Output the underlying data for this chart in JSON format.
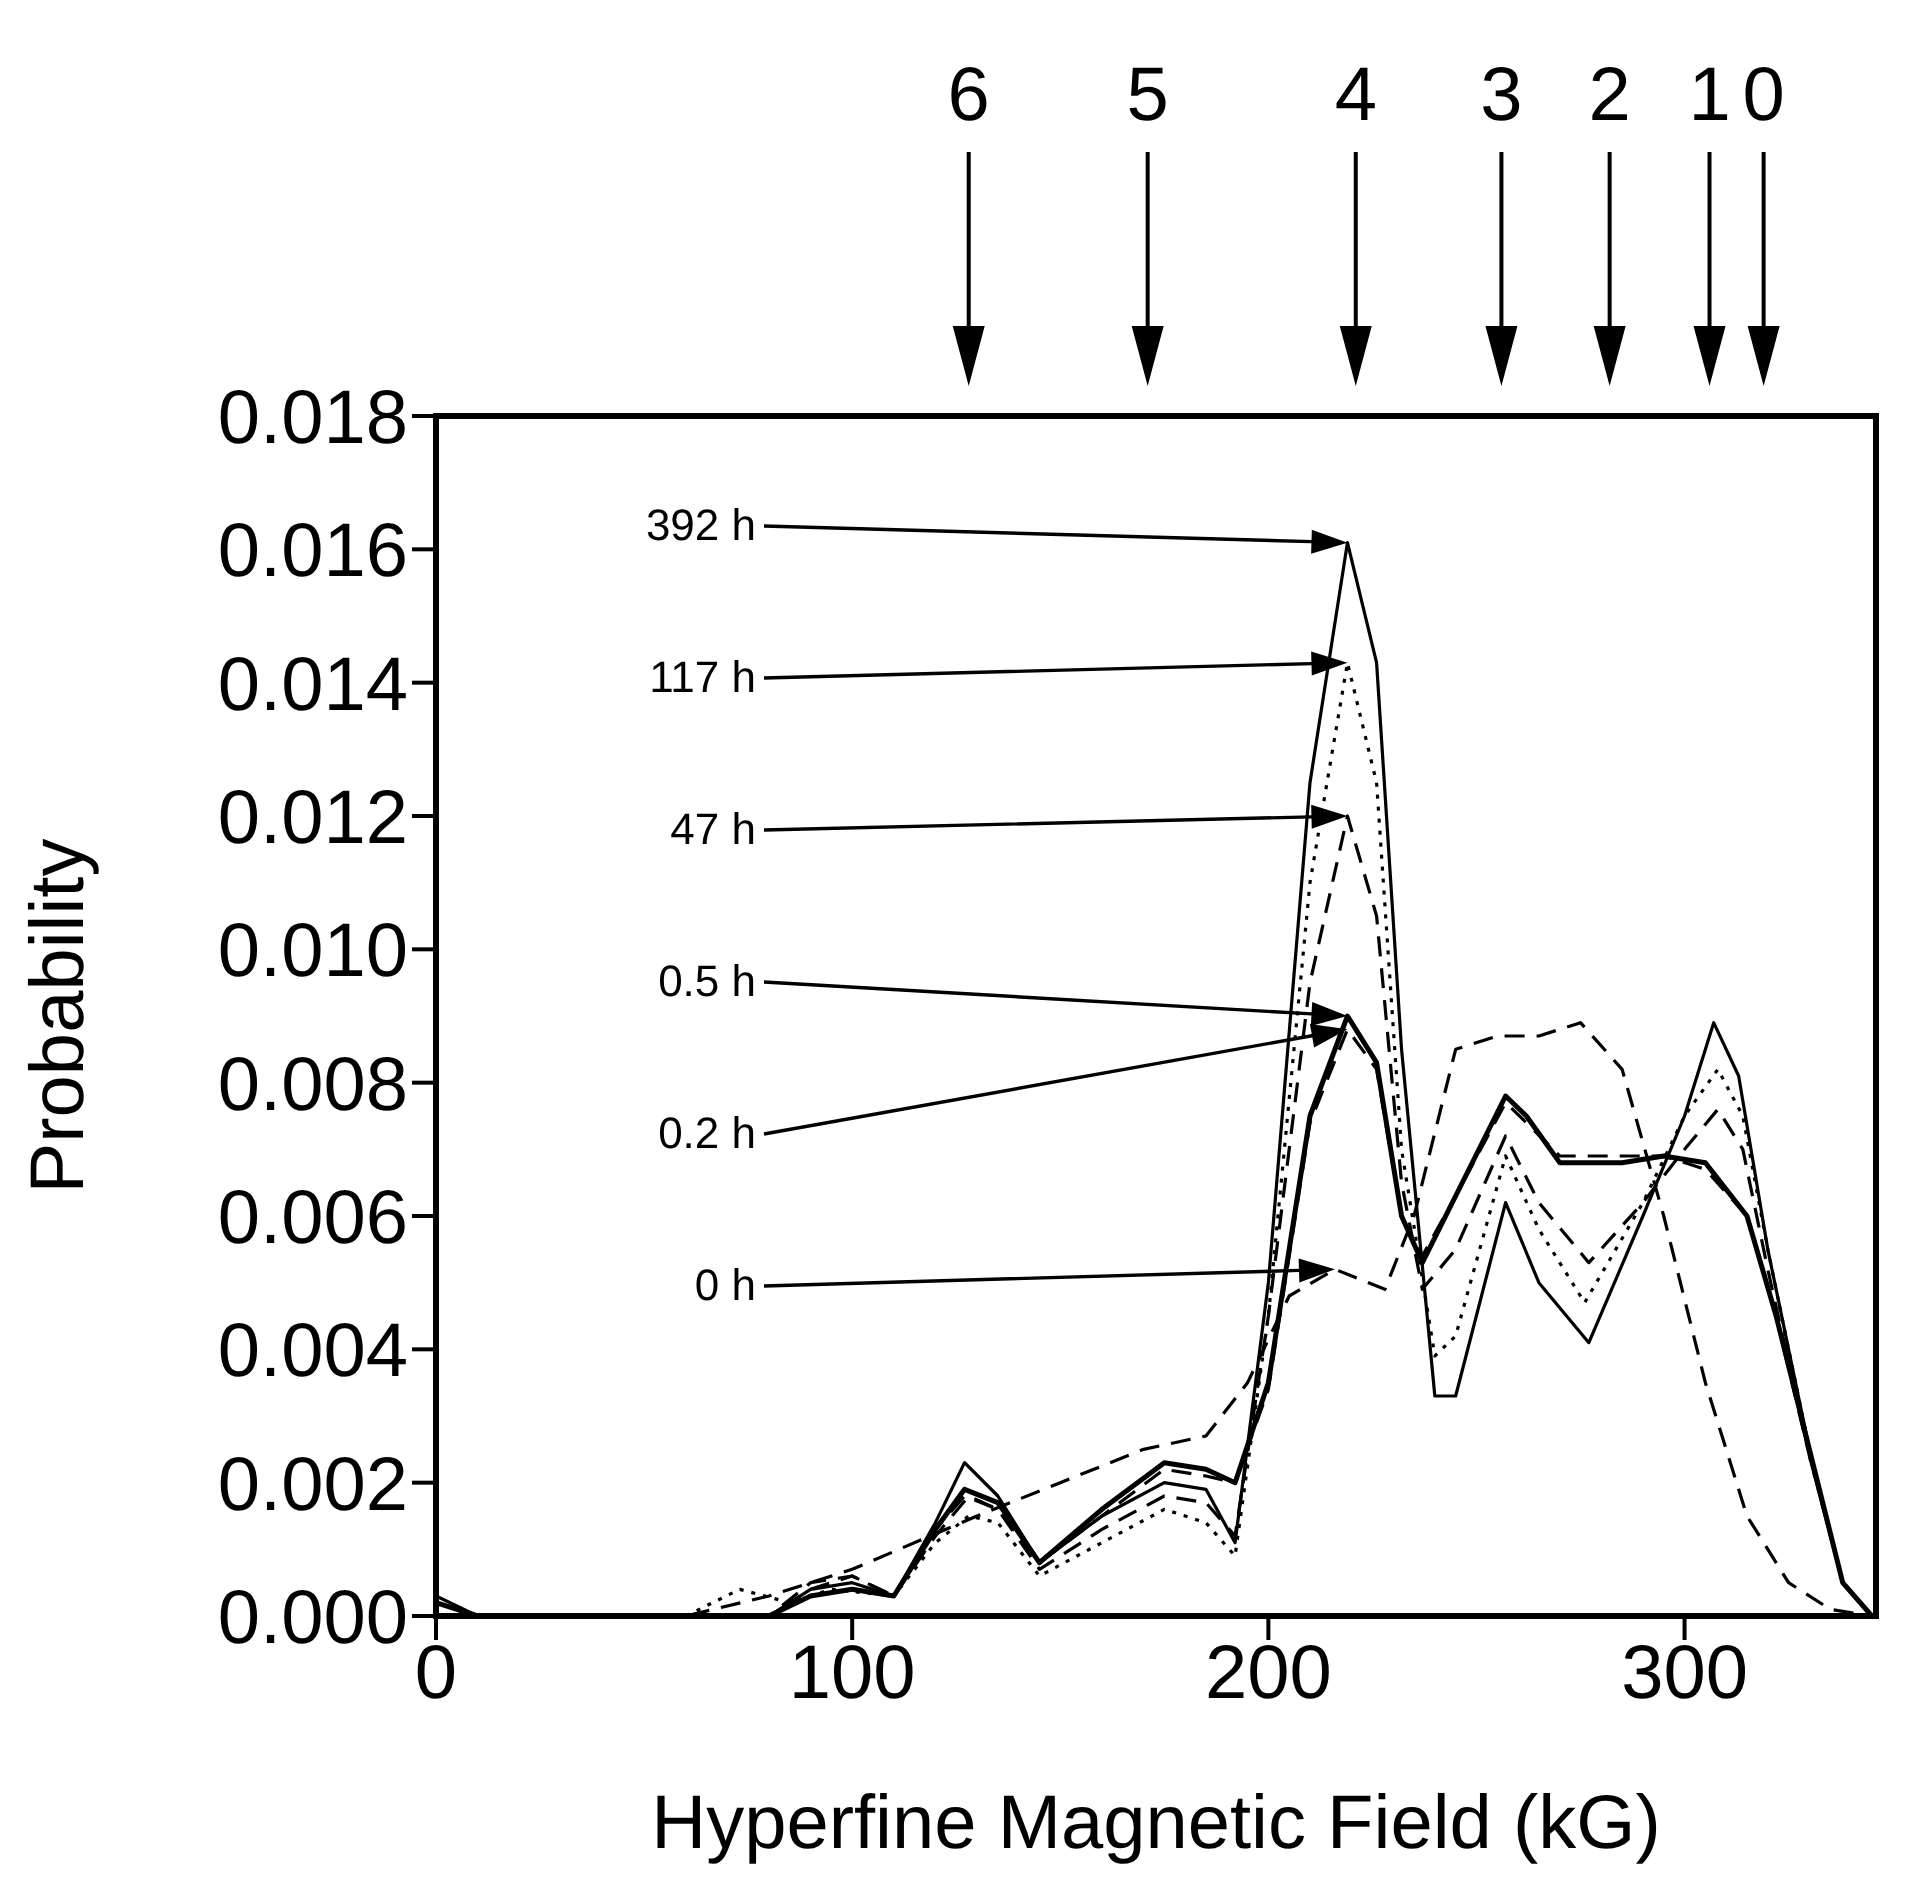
{
  "chart_data": {
    "type": "line",
    "xlabel": "Hyperfine Magnetic Field (kG)",
    "ylabel": "Probability",
    "xlim": [
      0,
      346
    ],
    "xticks": [
      0,
      100,
      200,
      300
    ],
    "ylim": [
      0,
      0.018
    ],
    "yticks": [
      {
        "value": 0,
        "label": "0.000"
      },
      {
        "value": 0.002,
        "label": "0.002"
      },
      {
        "value": 0.004,
        "label": "0.004"
      },
      {
        "value": 0.006,
        "label": "0.006"
      },
      {
        "value": 0.008,
        "label": "0.008"
      },
      {
        "value": 0.01,
        "label": "0.010"
      },
      {
        "value": 0.012,
        "label": "0.012"
      },
      {
        "value": 0.014,
        "label": "0.014"
      },
      {
        "value": 0.016,
        "label": "0.016"
      },
      {
        "value": 0.018,
        "label": "0.018"
      }
    ],
    "grid": false,
    "legend": false,
    "marker": "none",
    "series": [
      {
        "color": "#000000",
        "line_style": "solid",
        "x": [
          0,
          10,
          80,
          90,
          100,
          110,
          120,
          127,
          135,
          145,
          160,
          175,
          185,
          192,
          200,
          210,
          219,
          226,
          232,
          240,
          245,
          257,
          265,
          277,
          290,
          300,
          307,
          313,
          320,
          330,
          338,
          345
        ],
        "values": [
          0.0003,
          0,
          0,
          0.0004,
          0.0005,
          0.0003,
          0.0014,
          0.0023,
          0.0018,
          0.0008,
          0.0015,
          0.002,
          0.0019,
          0.0011,
          0.005,
          0.0125,
          0.0161,
          0.0143,
          0.0085,
          0.0033,
          0.0033,
          0.0062,
          0.005,
          0.0041,
          0.006,
          0.0075,
          0.0089,
          0.0081,
          0.0055,
          0.0025,
          0.0005,
          0
        ]
      },
      {
        "color": "#000000",
        "line_style": "dotted",
        "x": [
          0,
          10,
          60,
          73,
          85,
          95,
          110,
          120,
          128,
          135,
          145,
          160,
          175,
          185,
          192,
          200,
          210,
          219,
          226,
          232,
          240,
          245,
          257,
          265,
          276,
          290,
          300,
          308,
          314,
          320,
          330,
          338,
          345
        ],
        "values": [
          0.0002,
          0,
          0,
          0.0004,
          0.0002,
          0.0004,
          0.0003,
          0.0011,
          0.0015,
          0.0014,
          0.0006,
          0.0011,
          0.0016,
          0.0014,
          0.0009,
          0.0045,
          0.011,
          0.0143,
          0.0125,
          0.007,
          0.0039,
          0.0042,
          0.0069,
          0.0058,
          0.0047,
          0.0062,
          0.0075,
          0.0082,
          0.0075,
          0.0055,
          0.0025,
          0.0005,
          0
        ]
      },
      {
        "color": "#000000",
        "line_style": "dashed",
        "x": [
          0,
          10,
          80,
          90,
          100,
          110,
          120,
          128,
          135,
          145,
          160,
          175,
          185,
          192,
          200,
          210,
          219,
          226,
          232,
          237,
          245,
          257,
          265,
          277,
          290,
          300,
          308,
          314,
          320,
          330,
          338,
          345
        ],
        "values": [
          0.0002,
          0,
          0,
          0.0005,
          0.0006,
          0.0003,
          0.0012,
          0.0018,
          0.0016,
          0.0007,
          0.0013,
          0.0018,
          0.0017,
          0.0012,
          0.0045,
          0.0095,
          0.012,
          0.0105,
          0.0065,
          0.0049,
          0.0055,
          0.0072,
          0.0062,
          0.0053,
          0.0062,
          0.007,
          0.0076,
          0.007,
          0.0052,
          0.0024,
          0.0005,
          0
        ]
      },
      {
        "color": "#000000",
        "line_style": "solid",
        "x": [
          0,
          10,
          80,
          90,
          100,
          110,
          120,
          127,
          135,
          145,
          160,
          175,
          185,
          192,
          200,
          210,
          219,
          226,
          232,
          237,
          245,
          257,
          262,
          270,
          285,
          295,
          305,
          315,
          322,
          330,
          338,
          345
        ],
        "values": [
          0.0002,
          0,
          0,
          0.0003,
          0.0004,
          0.0003,
          0.0013,
          0.0019,
          0.0017,
          0.0008,
          0.0016,
          0.0023,
          0.0022,
          0.002,
          0.0035,
          0.0075,
          0.009,
          0.0083,
          0.006,
          0.0053,
          0.0063,
          0.0078,
          0.0075,
          0.0068,
          0.0068,
          0.0069,
          0.0068,
          0.006,
          0.0045,
          0.0025,
          0.0005,
          0
        ]
      },
      {
        "color": "#000000",
        "line_style": "dashed",
        "x": [
          0,
          10,
          80,
          90,
          100,
          110,
          120,
          127,
          135,
          145,
          160,
          175,
          185,
          192,
          200,
          210,
          219,
          226,
          232,
          237,
          245,
          257,
          262,
          270,
          285,
          295,
          305,
          315,
          322,
          330,
          338,
          345
        ],
        "values": [
          0.0002,
          0,
          0,
          0.0004,
          0.0006,
          0.0003,
          0.0013,
          0.0018,
          0.0016,
          0.0008,
          0.0015,
          0.0022,
          0.0021,
          0.002,
          0.0034,
          0.0074,
          0.0088,
          0.0082,
          0.006,
          0.0054,
          0.0063,
          0.0077,
          0.0074,
          0.0069,
          0.0069,
          0.0069,
          0.0067,
          0.006,
          0.0045,
          0.0024,
          0.0005,
          0
        ]
      },
      {
        "color": "#000000",
        "line_style": "dashed",
        "x": [
          0,
          10,
          60,
          80,
          100,
          130,
          150,
          170,
          185,
          195,
          205,
          216,
          228,
          235,
          245,
          255,
          265,
          275,
          285,
          295,
          305,
          315,
          325,
          335,
          345
        ],
        "values": [
          0.0002,
          0,
          0,
          0.0003,
          0.0007,
          0.0015,
          0.002,
          0.0025,
          0.0027,
          0.0035,
          0.0048,
          0.0052,
          0.0049,
          0.006,
          0.0085,
          0.0087,
          0.0087,
          0.0089,
          0.0082,
          0.006,
          0.0035,
          0.0015,
          0.0005,
          0.0001,
          0
        ]
      }
    ],
    "annotations": [
      "392 h",
      "117 h",
      "47 h",
      "0.5 h",
      "0.2 h",
      "0 h",
      "6",
      "5",
      "4",
      "3",
      "2",
      "1",
      "0"
    ]
  }
}
